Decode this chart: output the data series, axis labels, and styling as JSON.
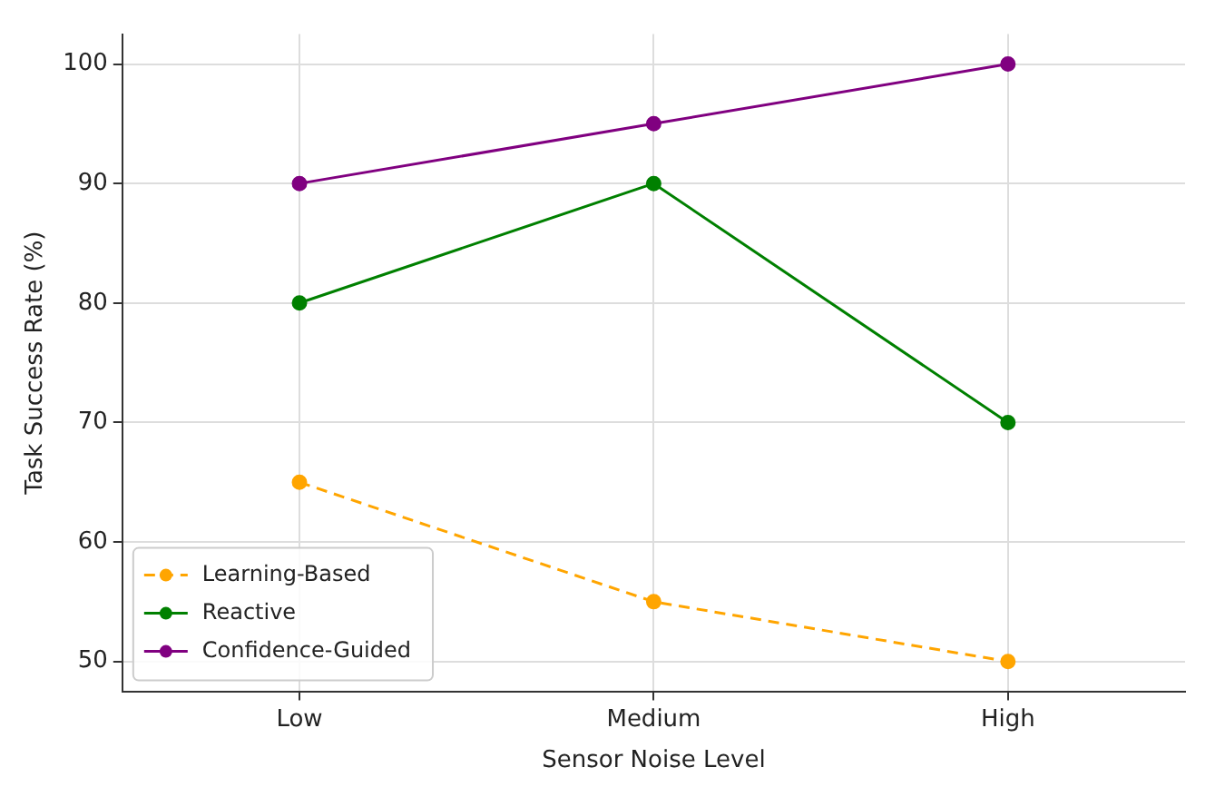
{
  "chart_data": {
    "type": "line",
    "xlabel": "Sensor Noise Level",
    "ylabel": "Task Success Rate (%)",
    "categories": [
      "Low",
      "Medium",
      "High"
    ],
    "series": [
      {
        "name": "Learning-Based",
        "color": "#ffa500",
        "values": [
          65,
          55,
          50
        ],
        "line_style": "dashed"
      },
      {
        "name": "Reactive",
        "color": "#008000",
        "values": [
          80,
          90,
          70
        ]
      },
      {
        "name": "Confidence-Guided",
        "color": "#800080",
        "values": [
          90,
          95,
          100
        ]
      }
    ],
    "ylim": [
      47.5,
      102.5
    ],
    "yticks": [
      50,
      60,
      70,
      80,
      90,
      100
    ],
    "grid": true,
    "legend": "bottom left",
    "marker": "circle"
  }
}
